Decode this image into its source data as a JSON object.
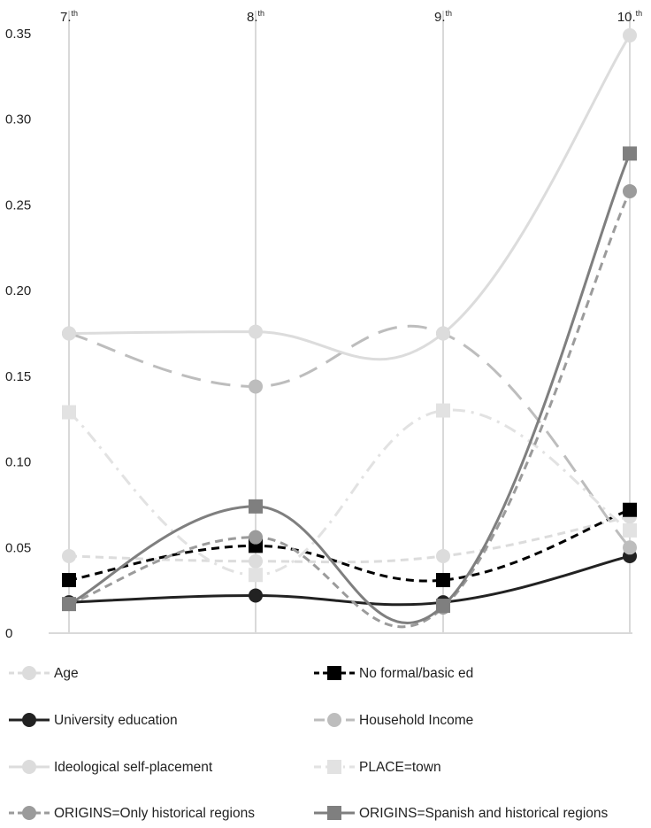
{
  "chart_data": {
    "type": "line",
    "title": "",
    "xlabel": "",
    "ylabel": "",
    "categories": [
      {
        "main": "7.",
        "sup": "th"
      },
      {
        "main": "8.",
        "sup": "th"
      },
      {
        "main": "9.",
        "sup": "th"
      },
      {
        "main": "10.",
        "sup": "th"
      }
    ],
    "y_ticks": [
      "0",
      "0.05",
      "0.10",
      "0.15",
      "0.20",
      "0.25",
      "0.30",
      "0.35"
    ],
    "ylim": [
      0,
      0.35
    ],
    "x_axis_position": "top",
    "grid": {
      "vertical": true,
      "horizontal": false
    },
    "legend_placement": "bottom",
    "series": [
      {
        "name": "Age",
        "values": [
          0.045,
          0.042,
          0.045,
          0.068
        ],
        "color": "#dcdcdc",
        "dash": "dashed-short",
        "marker": "circle",
        "curve": "smooth"
      },
      {
        "name": "No formal/basic ed",
        "values": [
          0.031,
          0.051,
          0.031,
          0.072
        ],
        "color": "#000000",
        "dash": "dashed-short",
        "marker": "square",
        "curve": "smooth"
      },
      {
        "name": "University education",
        "values": [
          0.018,
          0.022,
          0.018,
          0.045
        ],
        "color": "#222222",
        "dash": "solid",
        "marker": "circle",
        "curve": "smooth"
      },
      {
        "name": "Household Income",
        "values": [
          0.175,
          0.144,
          0.175,
          0.05
        ],
        "color": "#bdbdbd",
        "dash": "dashed-long",
        "marker": "circle",
        "curve": "smooth"
      },
      {
        "name": "Ideological self-placement",
        "values": [
          0.175,
          0.176,
          0.175,
          0.349
        ],
        "color": "#dcdcdc",
        "dash": "solid",
        "marker": "circle",
        "curve": "smooth"
      },
      {
        "name": "PLACE=town",
        "values": [
          0.129,
          0.034,
          0.13,
          0.06
        ],
        "color": "#e2e2e2",
        "dash": "dash-dot",
        "marker": "square",
        "curve": "smooth"
      },
      {
        "name": "ORIGINS=Only historical regions",
        "values": [
          0.017,
          0.056,
          0.015,
          0.258
        ],
        "color": "#9b9b9b",
        "dash": "dashed-short",
        "marker": "circle",
        "curve": "smooth"
      },
      {
        "name": "ORIGINS=Spanish and historical regions",
        "values": [
          0.017,
          0.074,
          0.016,
          0.28
        ],
        "color": "#7f7f7f",
        "dash": "solid",
        "marker": "square",
        "curve": "smooth"
      }
    ]
  }
}
